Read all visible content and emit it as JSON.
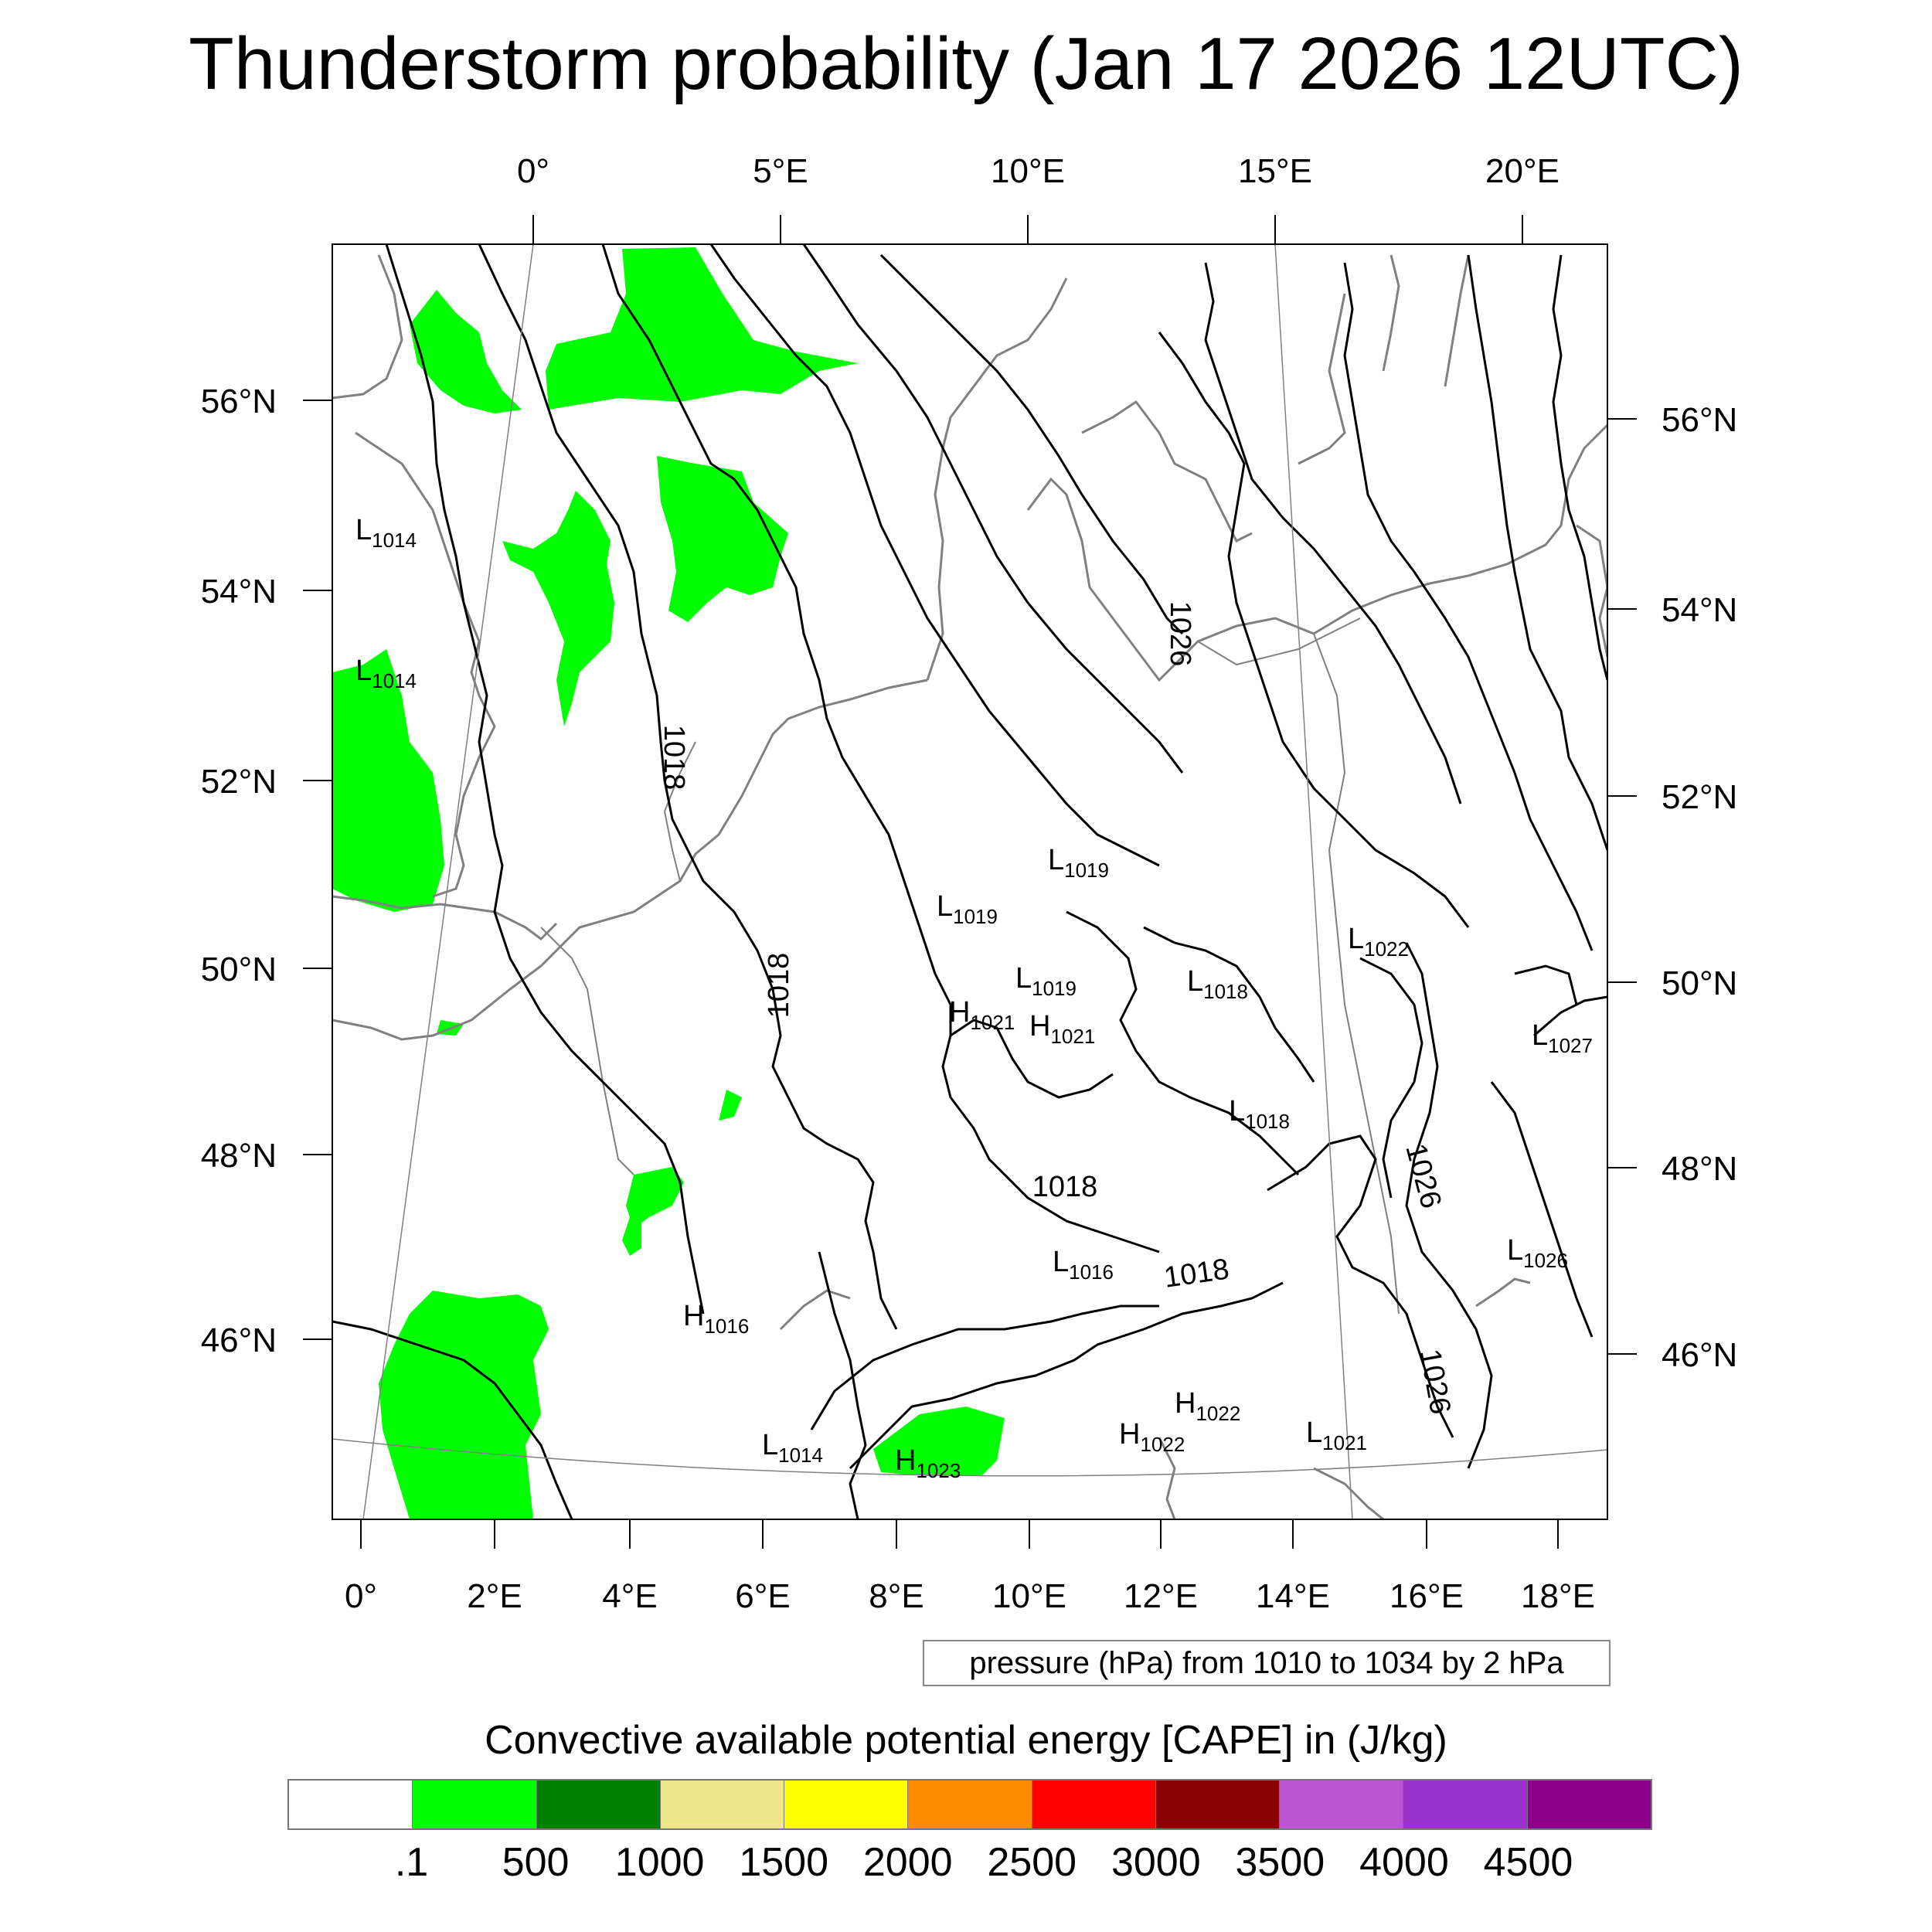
{
  "title": "Thunderstorm probability (Jan 17 2026 12UTC)",
  "map": {
    "top_lon_labels": [
      "0°",
      "5°E",
      "10°E",
      "15°E",
      "20°E"
    ],
    "bottom_lon_labels": [
      "0°",
      "2°E",
      "4°E",
      "6°E",
      "8°E",
      "10°E",
      "12°E",
      "14°E",
      "16°E",
      "18°E"
    ],
    "left_lat_labels": [
      "56°N",
      "54°N",
      "52°N",
      "50°N",
      "48°N",
      "46°N"
    ],
    "right_lat_labels": [
      "56°N",
      "54°N",
      "52°N",
      "50°N",
      "48°N",
      "46°N"
    ],
    "isobar_labels": [
      "1018",
      "1018",
      "1018",
      "1018",
      "1026",
      "1026",
      "1026"
    ],
    "pressure_centers": [
      {
        "type": "L",
        "value": "1014"
      },
      {
        "type": "L",
        "value": "1014"
      },
      {
        "type": "L",
        "value": "1019"
      },
      {
        "type": "L",
        "value": "1019"
      },
      {
        "type": "L",
        "value": "1019"
      },
      {
        "type": "H",
        "value": "1021"
      },
      {
        "type": "H",
        "value": "1021"
      },
      {
        "type": "L",
        "value": "1018"
      },
      {
        "type": "L",
        "value": "1018"
      },
      {
        "type": "L",
        "value": "1022"
      },
      {
        "type": "L",
        "value": "1027"
      },
      {
        "type": "L",
        "value": "1016"
      },
      {
        "type": "L",
        "value": "1026"
      },
      {
        "type": "H",
        "value": "1016"
      },
      {
        "type": "L",
        "value": "1014"
      },
      {
        "type": "H",
        "value": "1023"
      },
      {
        "type": "H",
        "value": "1022"
      },
      {
        "type": "H",
        "value": "1022"
      },
      {
        "type": "L",
        "value": "1021"
      }
    ],
    "cape_fill_color": "#00ff00",
    "isobar_color": "#000000",
    "coastline_color": "#808080"
  },
  "contour_info": "pressure (hPa) from 1010 to 1034 by 2 hPa",
  "colorbar": {
    "title": "Convective available potential energy [CAPE] in (J/kg)",
    "colors": [
      "#ffffff",
      "#00ff00",
      "#008000",
      "#f0e68c",
      "#ffff00",
      "#ff8c00",
      "#ff0000",
      "#8b0000",
      "#ba55d3",
      "#9932cc",
      "#8b008b"
    ],
    "labels": [
      ".1",
      "500",
      "1000",
      "1500",
      "2000",
      "2500",
      "3000",
      "3500",
      "4000",
      "4500"
    ]
  }
}
